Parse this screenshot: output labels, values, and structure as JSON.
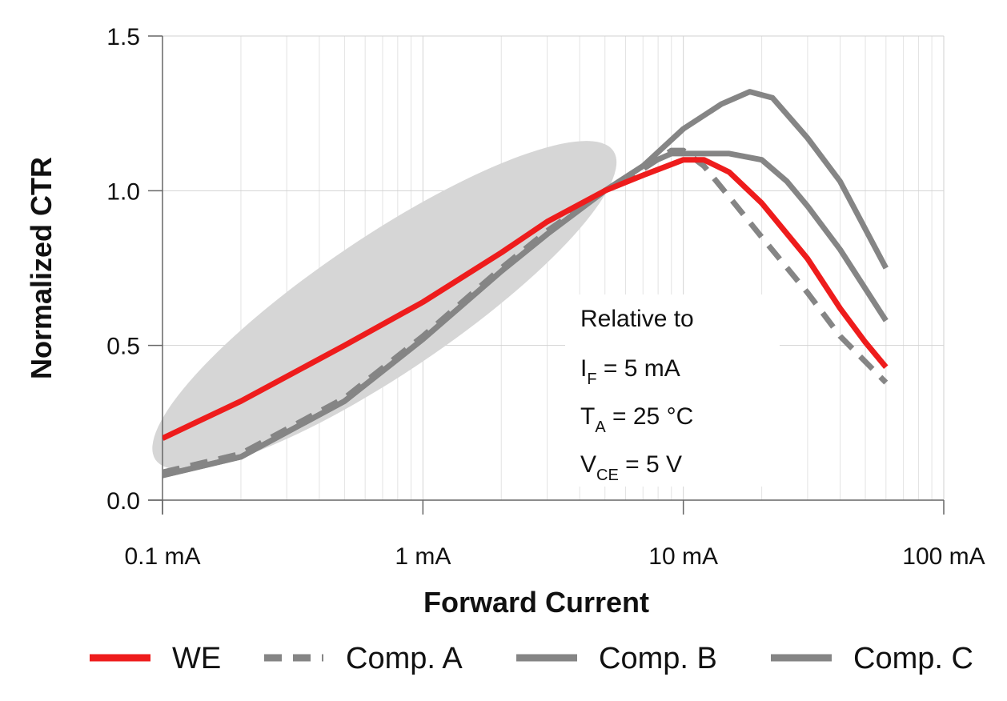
{
  "chart_data": {
    "type": "line",
    "x_scale": "log",
    "xlim": [
      0.1,
      100
    ],
    "ylim": [
      0.0,
      1.5
    ],
    "xlabel": "Forward Current",
    "ylabel": "Normalized CTR",
    "y_ticks": [
      "0.0",
      "0.5",
      "1.0",
      "1.5"
    ],
    "y_tick_values": [
      0.0,
      0.5,
      1.0,
      1.5
    ],
    "x_ticks": [
      "0.1 mA",
      "1 mA",
      "10 mA",
      "100 mA"
    ],
    "x_tick_values": [
      0.1,
      1,
      10,
      100
    ],
    "grid": true,
    "annotation": {
      "line1": "Relative to",
      "if_main": "I",
      "if_sub": "F",
      "if_value": " = 5 mA",
      "ta_main": "T",
      "ta_sub": "A",
      "ta_value": " = 25 °C",
      "vce_main": "V",
      "vce_sub": "CE",
      "vce_value": " = 5 V"
    },
    "highlight_region": {
      "note": "shaded ellipse over low-current range",
      "x_range_mA": [
        0.1,
        6
      ],
      "color": "#d6d6d6"
    },
    "series": [
      {
        "name": "WE",
        "color": "#ee1c1c",
        "dash": "solid",
        "points": [
          [
            0.1,
            0.2
          ],
          [
            0.2,
            0.32
          ],
          [
            0.5,
            0.5
          ],
          [
            1,
            0.64
          ],
          [
            2,
            0.8
          ],
          [
            3,
            0.9
          ],
          [
            5,
            1.0
          ],
          [
            7,
            1.05
          ],
          [
            10,
            1.1
          ],
          [
            12,
            1.1
          ],
          [
            15,
            1.06
          ],
          [
            20,
            0.96
          ],
          [
            30,
            0.78
          ],
          [
            40,
            0.62
          ],
          [
            50,
            0.51
          ],
          [
            60,
            0.43
          ]
        ]
      },
      {
        "name": "Comp. A",
        "color": "#858585",
        "dash": "dashed",
        "points": [
          [
            0.1,
            0.09
          ],
          [
            0.2,
            0.15
          ],
          [
            0.5,
            0.33
          ],
          [
            1,
            0.53
          ],
          [
            2,
            0.75
          ],
          [
            3,
            0.87
          ],
          [
            5,
            1.0
          ],
          [
            7,
            1.07
          ],
          [
            9,
            1.13
          ],
          [
            10,
            1.13
          ],
          [
            12,
            1.08
          ],
          [
            15,
            0.98
          ],
          [
            20,
            0.85
          ],
          [
            30,
            0.67
          ],
          [
            40,
            0.53
          ],
          [
            60,
            0.38
          ]
        ]
      },
      {
        "name": "Comp. B",
        "color": "#858585",
        "dash": "solid",
        "points": [
          [
            0.1,
            0.08
          ],
          [
            0.2,
            0.14
          ],
          [
            0.5,
            0.32
          ],
          [
            1,
            0.52
          ],
          [
            2,
            0.74
          ],
          [
            3,
            0.86
          ],
          [
            5,
            1.0
          ],
          [
            7,
            1.08
          ],
          [
            9,
            1.12
          ],
          [
            12,
            1.12
          ],
          [
            15,
            1.12
          ],
          [
            20,
            1.1
          ],
          [
            25,
            1.03
          ],
          [
            30,
            0.95
          ],
          [
            40,
            0.81
          ],
          [
            60,
            0.58
          ]
        ]
      },
      {
        "name": "Comp. C",
        "color": "#858585",
        "dash": "solid",
        "points": [
          [
            0.1,
            0.08
          ],
          [
            0.2,
            0.14
          ],
          [
            0.5,
            0.32
          ],
          [
            1,
            0.52
          ],
          [
            2,
            0.74
          ],
          [
            3,
            0.86
          ],
          [
            5,
            1.0
          ],
          [
            7,
            1.08
          ],
          [
            10,
            1.2
          ],
          [
            14,
            1.28
          ],
          [
            18,
            1.32
          ],
          [
            22,
            1.3
          ],
          [
            30,
            1.17
          ],
          [
            40,
            1.03
          ],
          [
            60,
            0.75
          ]
        ]
      }
    ]
  }
}
